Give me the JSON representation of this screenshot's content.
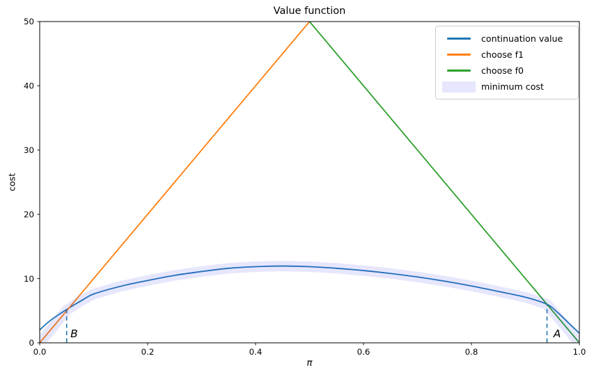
{
  "chart_data": {
    "type": "line",
    "title": "Value function",
    "xlabel": "π",
    "ylabel": "cost",
    "xlim": [
      0,
      1
    ],
    "ylim": [
      0,
      50
    ],
    "xtick_values": [
      0.0,
      0.2,
      0.4,
      0.6,
      0.8,
      1.0
    ],
    "xtick_labels": [
      "0.0",
      "0.2",
      "0.4",
      "0.6",
      "0.8",
      "1.0"
    ],
    "ytick_values": [
      0,
      10,
      20,
      30,
      40,
      50
    ],
    "ytick_labels": [
      "0",
      "10",
      "20",
      "30",
      "40",
      "50"
    ],
    "grid": false,
    "legend_position": "upper right",
    "series": [
      {
        "name": "continuation value",
        "color": "#1f77b4",
        "style": "solid",
        "x": [
          0,
          0.02,
          0.05,
          0.08,
          0.1,
          0.15,
          0.2,
          0.25,
          0.3,
          0.35,
          0.4,
          0.45,
          0.5,
          0.55,
          0.6,
          0.65,
          0.7,
          0.75,
          0.8,
          0.85,
          0.9,
          0.94,
          0.96,
          0.98,
          1.0
        ],
        "y": [
          2.0,
          3.5,
          5.2,
          6.7,
          7.6,
          8.8,
          9.7,
          10.5,
          11.1,
          11.6,
          11.85,
          11.95,
          11.85,
          11.6,
          11.25,
          10.8,
          10.25,
          9.6,
          8.85,
          8.0,
          7.1,
          6.0,
          4.7,
          3.1,
          1.5
        ]
      },
      {
        "name": "choose f1",
        "color": "#ff7f0e",
        "style": "solid",
        "x": [
          0,
          0.5
        ],
        "y": [
          0,
          50
        ]
      },
      {
        "name": "choose f0",
        "color": "#2ca02c",
        "style": "solid",
        "x": [
          0.5,
          1.0
        ],
        "y": [
          50,
          0
        ]
      },
      {
        "name": "minimum cost",
        "color": "rgba(50,50,240,0.12)",
        "style": "band",
        "x": [
          0,
          0.025,
          0.05,
          0.08,
          0.1,
          0.15,
          0.2,
          0.25,
          0.3,
          0.35,
          0.4,
          0.45,
          0.5,
          0.55,
          0.6,
          0.65,
          0.7,
          0.75,
          0.8,
          0.85,
          0.9,
          0.94,
          0.96,
          0.98,
          1.0
        ],
        "y": [
          0,
          2.5,
          5.1,
          6.7,
          7.6,
          8.8,
          9.7,
          10.5,
          11.1,
          11.6,
          11.85,
          11.95,
          11.85,
          11.6,
          11.25,
          10.8,
          10.25,
          9.6,
          8.85,
          8.0,
          7.1,
          6.0,
          4.0,
          2.0,
          0
        ]
      }
    ],
    "annotations": [
      {
        "label": "B",
        "x": 0.05,
        "y_top": 5.1,
        "text_x": 0.057,
        "text_y": 1.35,
        "line_color": "#1f77b4"
      },
      {
        "label": "A",
        "x": 0.94,
        "y_top": 6.0,
        "text_x": 0.952,
        "text_y": 1.35,
        "line_color": "#1f77b4"
      }
    ]
  }
}
